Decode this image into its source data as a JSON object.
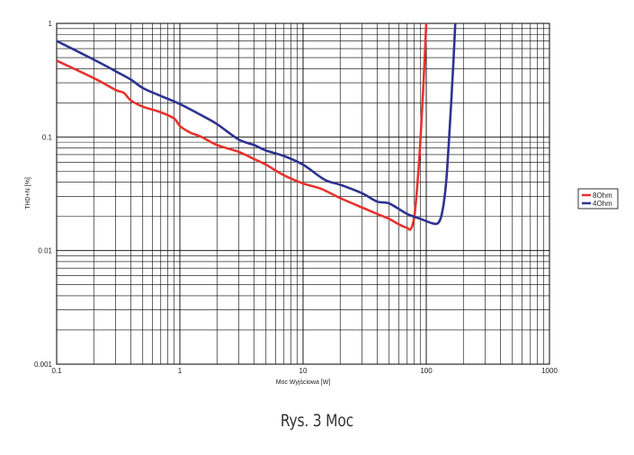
{
  "chart_data": {
    "type": "line",
    "title": "",
    "xlabel": "Moc Wyjściowa [W]",
    "ylabel": "THD+N [%]",
    "xscale": "log",
    "yscale": "log",
    "xlim": [
      0.1,
      1000
    ],
    "ylim": [
      0.001,
      1
    ],
    "grid": true,
    "legend_position": "right",
    "x_ticks": [
      "0.1",
      "1",
      "10",
      "100",
      "1000"
    ],
    "y_ticks": [
      "1",
      "0.1",
      "0.01",
      "0.001"
    ],
    "series": [
      {
        "name": "8Ohm",
        "color": "#e8322d",
        "x": [
          0.1,
          0.2,
          0.3,
          0.35,
          0.4,
          0.5,
          0.7,
          0.9,
          1.0,
          1.2,
          1.5,
          2.0,
          3.0,
          4.0,
          5.0,
          7.0,
          10.0,
          14.0,
          20.0,
          30.0,
          40.0,
          50.0,
          60.0,
          70.0,
          75.0,
          80.0,
          85.0,
          90.0,
          95.0,
          100.0
        ],
        "y": [
          0.47,
          0.33,
          0.26,
          0.245,
          0.21,
          0.185,
          0.165,
          0.145,
          0.125,
          0.11,
          0.1,
          0.085,
          0.074,
          0.064,
          0.057,
          0.046,
          0.039,
          0.035,
          0.029,
          0.024,
          0.021,
          0.019,
          0.017,
          0.0158,
          0.0155,
          0.02,
          0.04,
          0.1,
          0.3,
          1.0
        ]
      },
      {
        "name": "4Ohm",
        "color": "#2f3290",
        "x": [
          0.1,
          0.2,
          0.3,
          0.4,
          0.5,
          0.7,
          1.0,
          1.5,
          2.0,
          3.0,
          4.0,
          5.0,
          7.0,
          10.0,
          15.0,
          20.0,
          30.0,
          40.0,
          50.0,
          70.0,
          90.0,
          110.0,
          125.0,
          135.0,
          145.0,
          155.0,
          165.0,
          172.0
        ],
        "y": [
          0.7,
          0.48,
          0.38,
          0.32,
          0.27,
          0.23,
          0.195,
          0.155,
          0.13,
          0.095,
          0.085,
          0.076,
          0.068,
          0.057,
          0.042,
          0.038,
          0.032,
          0.027,
          0.026,
          0.021,
          0.019,
          0.0175,
          0.0175,
          0.022,
          0.04,
          0.12,
          0.4,
          1.0
        ]
      }
    ]
  },
  "caption": "Rys. 3 Moc"
}
